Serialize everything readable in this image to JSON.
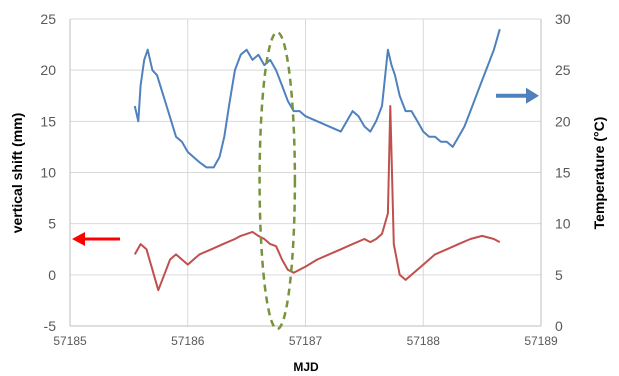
{
  "chart_data": {
    "type": "line",
    "xlabel": "MJD",
    "ylabel_left": "vertical shift (mm)",
    "ylabel_right": "Temperature (°C)",
    "xlim": [
      57185,
      57189
    ],
    "ylim_left": [
      -5,
      25
    ],
    "ylim_right": [
      0,
      30
    ],
    "x_ticks": [
      "57185",
      "57186",
      "57187",
      "57188",
      "57189"
    ],
    "y_left_ticks": [
      "-5",
      "0",
      "5",
      "10",
      "15",
      "20",
      "25"
    ],
    "y_right_ticks": [
      "0",
      "5",
      "10",
      "15",
      "20",
      "25",
      "30"
    ],
    "grid": true,
    "colors": {
      "temperature": "#4f81bd",
      "vertical_shift": "#c0504d",
      "ellipse": "#77933c",
      "arrow_left": "#ff0000",
      "arrow_right": "#4f81bd",
      "grid": "#d9d9d9"
    },
    "series": [
      {
        "axis": "right",
        "x": [
          57185.55,
          57185.58,
          57185.6,
          57185.63,
          57185.66,
          57185.7,
          57185.74,
          57185.78,
          57185.82,
          57185.86,
          57185.9,
          57185.95,
          57186.0,
          57186.05,
          57186.1,
          57186.16,
          57186.22,
          57186.27,
          57186.31,
          57186.35,
          57186.4,
          57186.45,
          57186.5,
          57186.55,
          57186.6,
          57186.65,
          57186.7,
          57186.75,
          57186.8,
          57186.85,
          57186.9,
          57186.95,
          57187.0,
          57187.1,
          57187.2,
          57187.3,
          57187.4,
          57187.45,
          57187.5,
          57187.55,
          57187.6,
          57187.65,
          57187.7,
          57187.73,
          57187.76,
          57187.8,
          57187.85,
          57187.9,
          57187.95,
          57188.0,
          57188.05,
          57188.1,
          57188.15,
          57188.2,
          57188.25,
          57188.3,
          57188.35,
          57188.4,
          57188.45,
          57188.5,
          57188.55,
          57188.6,
          57188.65
        ],
        "values": [
          21.5,
          20.0,
          23.5,
          26.0,
          27.0,
          25.0,
          24.5,
          23.0,
          21.5,
          20.0,
          18.5,
          18.0,
          17.0,
          16.5,
          16.0,
          15.5,
          15.5,
          16.5,
          18.5,
          21.5,
          25.0,
          26.5,
          27.0,
          26.0,
          26.5,
          25.5,
          26.0,
          25.0,
          23.5,
          22.0,
          21.0,
          21.0,
          20.5,
          20.0,
          19.5,
          19.0,
          21.0,
          20.5,
          19.5,
          19.0,
          20.0,
          21.5,
          27.0,
          25.5,
          24.5,
          22.5,
          21.0,
          21.0,
          20.0,
          19.0,
          18.5,
          18.5,
          18.0,
          18.0,
          17.5,
          18.5,
          19.5,
          21.0,
          22.5,
          24.0,
          25.5,
          27.0,
          29.0
        ]
      },
      {
        "axis": "left",
        "x": [
          57185.55,
          57185.6,
          57185.65,
          57185.7,
          57185.75,
          57185.8,
          57185.85,
          57185.9,
          57185.95,
          57186.0,
          57186.05,
          57186.1,
          57186.2,
          57186.3,
          57186.4,
          57186.45,
          57186.5,
          57186.55,
          57186.6,
          57186.65,
          57186.7,
          57186.75,
          57186.8,
          57186.85,
          57186.9,
          57187.0,
          57187.1,
          57187.2,
          57187.3,
          57187.4,
          57187.5,
          57187.55,
          57187.6,
          57187.65,
          57187.7,
          57187.72,
          57187.75,
          57187.8,
          57187.85,
          57187.9,
          57188.0,
          57188.1,
          57188.2,
          57188.3,
          57188.4,
          57188.5,
          57188.6,
          57188.65
        ],
        "values": [
          2.0,
          3.0,
          2.5,
          0.5,
          -1.5,
          0.0,
          1.5,
          2.0,
          1.5,
          1.0,
          1.5,
          2.0,
          2.5,
          3.0,
          3.5,
          3.8,
          4.0,
          4.2,
          3.8,
          3.5,
          3.0,
          2.8,
          1.5,
          0.5,
          0.2,
          0.8,
          1.5,
          2.0,
          2.5,
          3.0,
          3.5,
          3.2,
          3.5,
          4.0,
          6.0,
          16.5,
          3.0,
          0.0,
          -0.5,
          0.0,
          1.0,
          2.0,
          2.5,
          3.0,
          3.5,
          3.8,
          3.5,
          3.2
        ]
      }
    ],
    "annotations": [
      {
        "type": "dashed-ellipse",
        "x_center": 57186.76,
        "y_center_left": 9.2,
        "x_half_width": 0.15,
        "y_half_height_left": 14.5
      },
      {
        "type": "arrow",
        "direction": "left",
        "points_to": "left axis"
      },
      {
        "type": "arrow",
        "direction": "right",
        "points_to": "right axis"
      }
    ]
  }
}
